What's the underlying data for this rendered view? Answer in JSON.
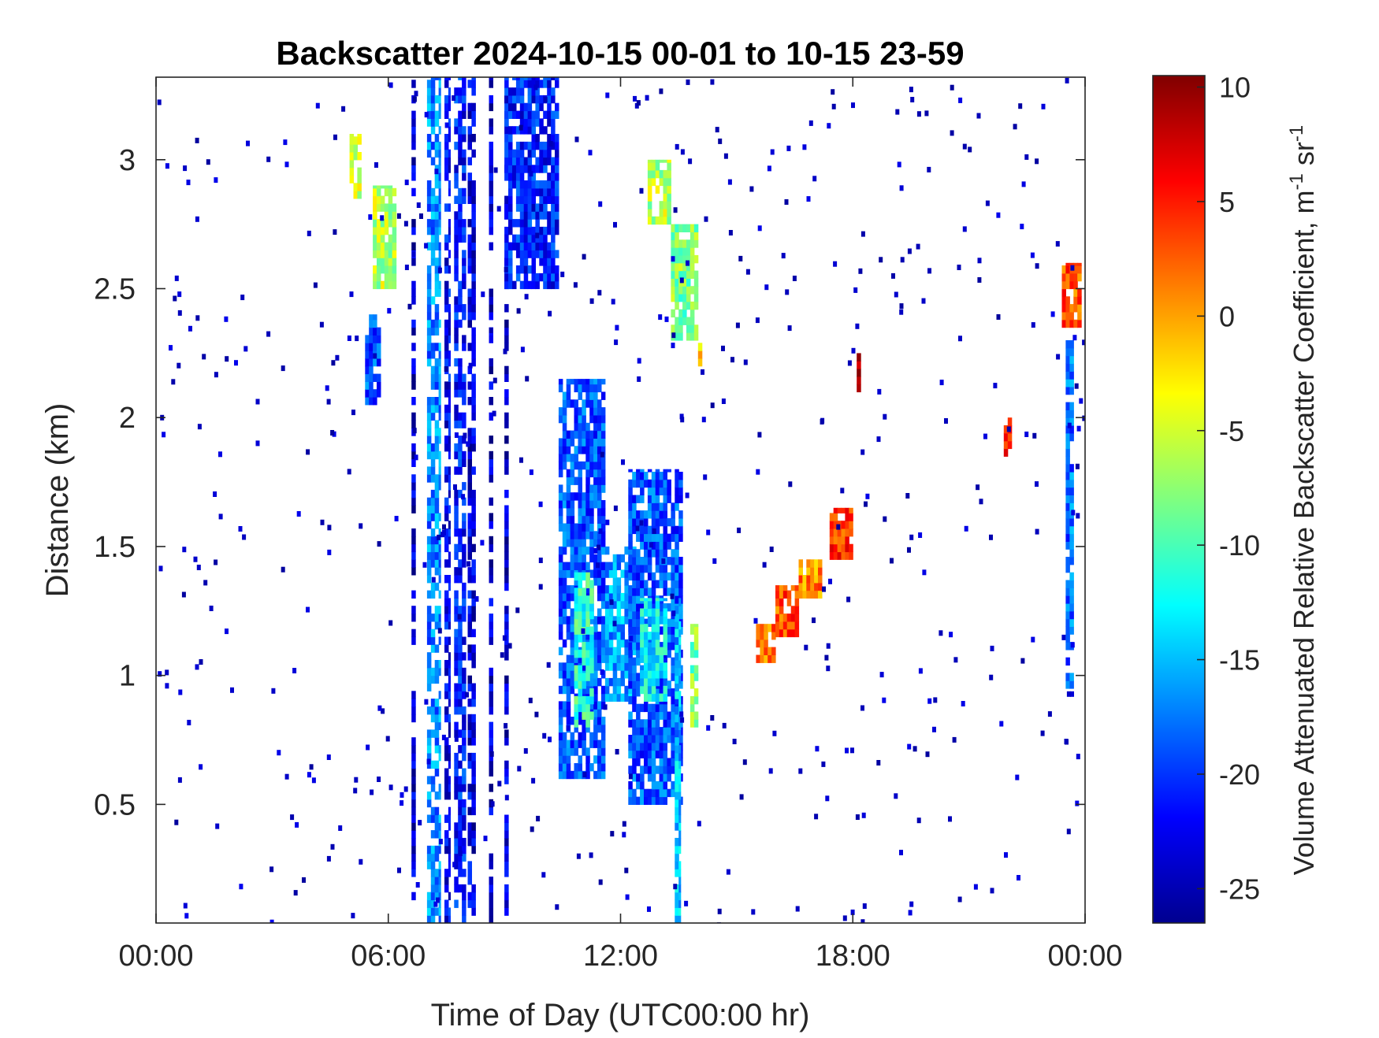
{
  "chart_data": {
    "type": "heatmap",
    "title": "Backscatter 2024-10-15 00-01 to 10-15 23-59",
    "xlabel": "Time of Day (UTC00:00 hr)",
    "ylabel": "Distance (km)",
    "colorbar_label": "Volume Attenuated Relative Backscatter Coefficient, m",
    "colorbar_label_unit": "-1",
    "colorbar_label_tail": " sr",
    "colorbar_label_unit2": "-1",
    "x_range_hours": [
      0,
      24
    ],
    "x_ticks": [
      {
        "hour": 0,
        "label": "00:00"
      },
      {
        "hour": 6,
        "label": "06:00"
      },
      {
        "hour": 12,
        "label": "12:00"
      },
      {
        "hour": 18,
        "label": "18:00"
      },
      {
        "hour": 24,
        "label": "00:00"
      }
    ],
    "ylim": [
      0.04,
      3.32
    ],
    "y_ticks": [
      {
        "value": 0.5,
        "label": "0.5"
      },
      {
        "value": 1,
        "label": "1"
      },
      {
        "value": 1.5,
        "label": "1.5"
      },
      {
        "value": 2,
        "label": "2"
      },
      {
        "value": 2.5,
        "label": "2.5"
      },
      {
        "value": 3,
        "label": "3"
      }
    ],
    "clim": [
      -26.5,
      10.5
    ],
    "colorbar_ticks": [
      {
        "value": 10,
        "label": "10"
      },
      {
        "value": 5,
        "label": "5"
      },
      {
        "value": 0,
        "label": "0"
      },
      {
        "value": -5,
        "label": "-5"
      },
      {
        "value": -10,
        "label": "-10"
      },
      {
        "value": -15,
        "label": "-15"
      },
      {
        "value": -20,
        "label": "-20"
      },
      {
        "value": -25,
        "label": "-25"
      }
    ],
    "colormap": "jet",
    "grid": false,
    "features": [
      {
        "name": "column",
        "t0": 7.0,
        "t1": 7.35,
        "y0": 0.04,
        "y1": 3.32,
        "v": -17
      },
      {
        "name": "column",
        "t0": 7.45,
        "t1": 7.6,
        "y0": 0.04,
        "y1": 3.32,
        "v": -22
      },
      {
        "name": "column",
        "t0": 7.7,
        "t1": 8.0,
        "y0": 0.04,
        "y1": 3.32,
        "v": -21
      },
      {
        "name": "column",
        "t0": 8.05,
        "t1": 8.25,
        "y0": 0.04,
        "y1": 3.32,
        "v": -23
      },
      {
        "name": "column",
        "t0": 6.6,
        "t1": 6.7,
        "y0": 0.04,
        "y1": 3.32,
        "v": -24
      },
      {
        "name": "column",
        "t0": 8.6,
        "t1": 8.7,
        "y0": 0.04,
        "y1": 3.32,
        "v": -24
      },
      {
        "name": "column",
        "t0": 9.0,
        "t1": 9.1,
        "y0": 0.04,
        "y1": 3.32,
        "v": -24
      },
      {
        "name": "cloud",
        "t0": 9.0,
        "t1": 10.4,
        "y0": 2.5,
        "y1": 3.32,
        "v": -21
      },
      {
        "name": "cloud",
        "t0": 10.4,
        "t1": 11.6,
        "y0": 0.6,
        "y1": 2.15,
        "v": -19
      },
      {
        "name": "cloud",
        "t0": 10.8,
        "t1": 11.3,
        "y0": 0.8,
        "y1": 1.4,
        "v": -11
      },
      {
        "name": "cloud",
        "t0": 11.6,
        "t1": 12.4,
        "y0": 0.9,
        "y1": 1.5,
        "v": -16
      },
      {
        "name": "cloud",
        "t0": 12.2,
        "t1": 13.6,
        "y0": 0.5,
        "y1": 1.8,
        "v": -19
      },
      {
        "name": "cloud",
        "t0": 12.5,
        "t1": 13.2,
        "y0": 0.9,
        "y1": 1.3,
        "v": -13
      },
      {
        "name": "cloud",
        "t0": 13.4,
        "t1": 13.55,
        "y0": 0.04,
        "y1": 1.3,
        "v": -15
      },
      {
        "name": "cloud",
        "t0": 13.8,
        "t1": 14.0,
        "y0": 0.8,
        "y1": 1.2,
        "v": -8
      },
      {
        "name": "cloud",
        "t0": 5.0,
        "t1": 5.3,
        "y0": 2.85,
        "y1": 3.1,
        "v": -5
      },
      {
        "name": "cloud",
        "t0": 5.6,
        "t1": 6.2,
        "y0": 2.5,
        "y1": 2.9,
        "v": -6
      },
      {
        "name": "cloud",
        "t0": 5.4,
        "t1": 5.8,
        "y0": 2.05,
        "y1": 2.4,
        "v": -19
      },
      {
        "name": "cloud",
        "t0": 12.7,
        "t1": 13.3,
        "y0": 2.75,
        "y1": 3.0,
        "v": -6
      },
      {
        "name": "cloud",
        "t0": 13.3,
        "t1": 14.0,
        "y0": 2.3,
        "y1": 2.75,
        "v": -8
      },
      {
        "name": "cloud",
        "t0": 14.0,
        "t1": 14.1,
        "y0": 2.2,
        "y1": 2.35,
        "v": -2
      },
      {
        "name": "layer",
        "t0": 15.5,
        "t1": 16.0,
        "y0": 1.05,
        "y1": 1.2,
        "v": 2
      },
      {
        "name": "layer",
        "t0": 16.0,
        "t1": 16.6,
        "y0": 1.15,
        "y1": 1.35,
        "v": 3
      },
      {
        "name": "layer",
        "t0": 16.6,
        "t1": 17.2,
        "y0": 1.3,
        "y1": 1.45,
        "v": 1
      },
      {
        "name": "layer",
        "t0": 17.4,
        "t1": 18.0,
        "y0": 1.45,
        "y1": 1.65,
        "v": 4
      },
      {
        "name": "layer",
        "t0": 18.1,
        "t1": 18.2,
        "y0": 2.1,
        "y1": 2.25,
        "v": 8
      },
      {
        "name": "layer",
        "t0": 21.9,
        "t1": 22.1,
        "y0": 1.85,
        "y1": 2.0,
        "v": 5
      },
      {
        "name": "layer",
        "t0": 23.4,
        "t1": 23.9,
        "y0": 2.35,
        "y1": 2.6,
        "v": 3
      },
      {
        "name": "layer",
        "t0": 23.5,
        "t1": 23.7,
        "y0": 0.95,
        "y1": 2.3,
        "v": -18
      }
    ]
  }
}
